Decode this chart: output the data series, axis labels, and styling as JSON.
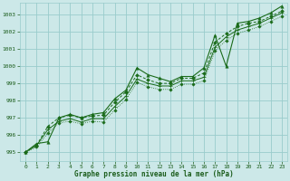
{
  "title": "Graphe pression niveau de la mer (hPa)",
  "xlim": [
    -0.5,
    23.5
  ],
  "ylim": [
    994.5,
    1003.7
  ],
  "yticks": [
    995,
    996,
    997,
    998,
    999,
    1000,
    1001,
    1002,
    1003
  ],
  "xticks": [
    0,
    1,
    2,
    3,
    4,
    5,
    6,
    7,
    8,
    9,
    10,
    11,
    12,
    13,
    14,
    15,
    16,
    17,
    18,
    19,
    20,
    21,
    22,
    23
  ],
  "background_color": "#cce8e8",
  "grid_color": "#99cccc",
  "line_color": "#1a6b1a",
  "text_color": "#1a5c1a",
  "series1": [
    995.0,
    995.5,
    995.6,
    997.0,
    997.2,
    997.0,
    997.2,
    997.3,
    998.1,
    998.6,
    999.9,
    999.5,
    999.3,
    999.1,
    999.4,
    999.4,
    999.9,
    1001.8,
    1000.0,
    1002.5,
    1002.6,
    1002.8,
    1003.1,
    1003.5
  ],
  "series2": [
    995.0,
    995.4,
    996.5,
    997.0,
    997.15,
    997.0,
    997.1,
    997.15,
    997.9,
    998.5,
    999.5,
    999.2,
    999.0,
    999.0,
    999.3,
    999.3,
    999.6,
    1001.4,
    1001.9,
    1002.3,
    1002.5,
    1002.6,
    1002.9,
    1003.2
  ],
  "series3": [
    995.0,
    995.4,
    996.3,
    996.8,
    996.95,
    996.75,
    996.95,
    996.95,
    997.65,
    998.25,
    999.25,
    999.0,
    998.85,
    998.85,
    999.15,
    999.15,
    999.35,
    1001.1,
    1001.7,
    1002.1,
    1002.3,
    1002.5,
    1002.8,
    1003.1
  ],
  "series4": [
    995.0,
    995.3,
    996.1,
    996.7,
    996.8,
    996.65,
    996.8,
    996.75,
    997.45,
    998.05,
    999.05,
    998.8,
    998.65,
    998.65,
    998.95,
    998.95,
    999.15,
    1000.9,
    1001.5,
    1001.9,
    1002.1,
    1002.3,
    1002.6,
    1002.9
  ]
}
